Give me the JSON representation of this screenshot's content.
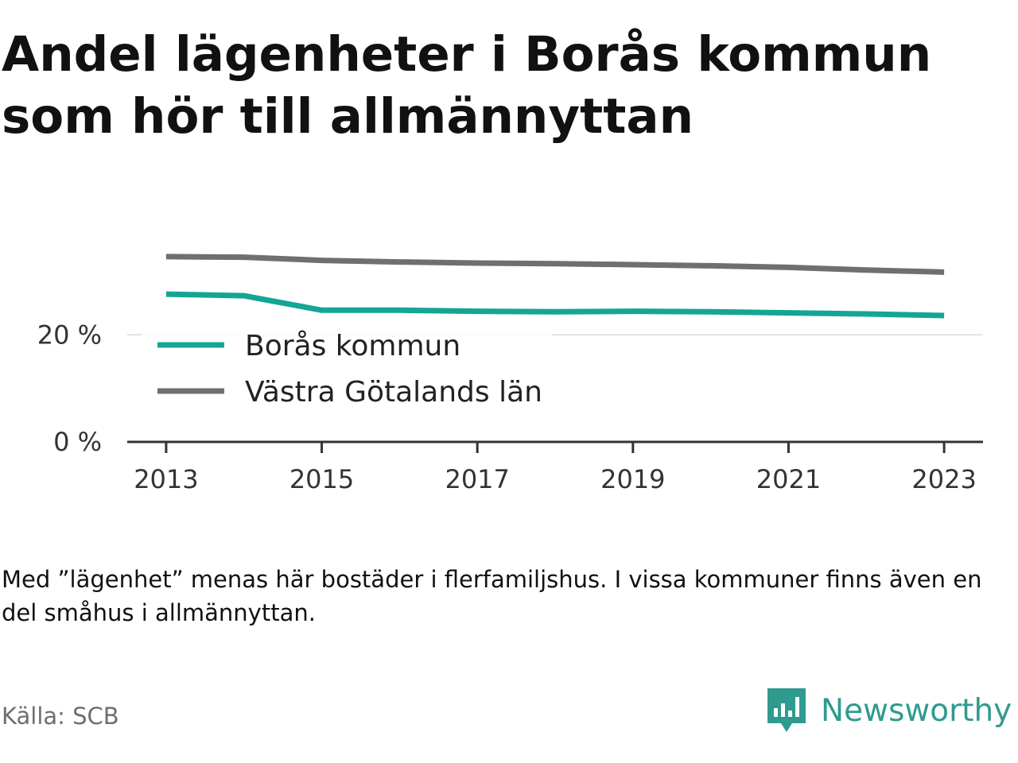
{
  "title": "Andel lägenheter i Borås kommun som hör till allmännyttan",
  "note": "Med ”lägenhet” menas här bostäder i flerfamiljshus. I vissa kommuner finns även en del småhus i allmännyttan.",
  "source": "Källa: SCB",
  "brand": {
    "name": "Newsworthy",
    "icon": "newsworthy-logo-icon",
    "color": "#2f9b8f"
  },
  "chart_data": {
    "type": "line",
    "x": [
      2013,
      2014,
      2015,
      2016,
      2017,
      2018,
      2019,
      2020,
      2021,
      2022,
      2023
    ],
    "series": [
      {
        "name": "Borås kommun",
        "color": "#14a595",
        "values": [
          27.6,
          27.3,
          24.6,
          24.6,
          24.4,
          24.3,
          24.4,
          24.3,
          24.1,
          23.9,
          23.6
        ]
      },
      {
        "name": "Västra Götalands län",
        "color": "#6f6f73",
        "values": [
          34.6,
          34.5,
          33.9,
          33.6,
          33.4,
          33.3,
          33.1,
          32.9,
          32.6,
          32.1,
          31.7
        ]
      }
    ],
    "xticks": [
      2013,
      2015,
      2017,
      2019,
      2021,
      2023
    ],
    "xtick_labels": [
      "2013",
      "2015",
      "2017",
      "2019",
      "2021",
      "2023"
    ],
    "yticks": [
      0,
      20
    ],
    "ytick_labels": [
      "0 %",
      "20 %"
    ],
    "xlim": [
      2012.5,
      2023.5
    ],
    "ylim": [
      0,
      38
    ],
    "grid": true,
    "legend": "inside-bottom-left"
  }
}
